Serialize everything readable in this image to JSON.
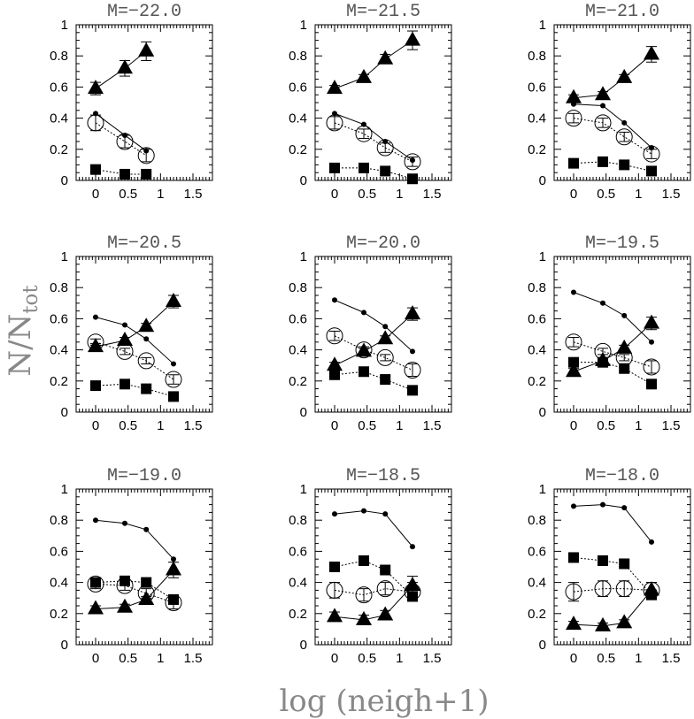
{
  "figure": {
    "ylabel_main": "N/N",
    "ylabel_sub": "tot",
    "xlabel": "log (neigh+1)"
  },
  "chart_data": [
    {
      "type": "scatter",
      "title": "M=−22.0",
      "xlim": [
        -0.3,
        1.8
      ],
      "ylim": [
        0,
        1
      ],
      "xticks": [
        "0",
        "0.5",
        "1",
        "1.5"
      ],
      "yticks": [
        "0",
        "0.2",
        "0.4",
        "0.6",
        "0.8",
        "1"
      ],
      "series": [
        {
          "name": "triangles",
          "marker": "triangle",
          "line": "solid",
          "x": [
            0,
            0.45,
            0.78
          ],
          "y": [
            0.59,
            0.72,
            0.83
          ],
          "err": [
            0.04,
            0.05,
            0.06
          ]
        },
        {
          "name": "open circles",
          "marker": "open-circle",
          "line": "dotted",
          "x": [
            0,
            0.45,
            0.78
          ],
          "y": [
            0.37,
            0.25,
            0.16
          ],
          "err": [
            0.05,
            0.04,
            0.04
          ]
        },
        {
          "name": "dots",
          "marker": "dot",
          "line": "solid",
          "x": [
            0,
            0.45,
            0.78
          ],
          "y": [
            0.43,
            0.29,
            0.19
          ],
          "err": []
        },
        {
          "name": "squares",
          "marker": "square",
          "line": "dotted",
          "x": [
            0,
            0.45,
            0.78
          ],
          "y": [
            0.07,
            0.04,
            0.04
          ],
          "err": []
        }
      ]
    },
    {
      "type": "scatter",
      "title": "M=−21.5",
      "xlim": [
        -0.3,
        1.8
      ],
      "ylim": [
        0,
        1
      ],
      "xticks": [
        "0",
        "0.5",
        "1",
        "1.5"
      ],
      "yticks": [
        "0",
        "0.2",
        "0.4",
        "0.6",
        "0.8",
        "1"
      ],
      "series": [
        {
          "name": "triangles",
          "marker": "triangle",
          "line": "solid",
          "x": [
            0,
            0.45,
            0.78,
            1.2
          ],
          "y": [
            0.59,
            0.66,
            0.78,
            0.9
          ],
          "err": [
            0.02,
            0.02,
            0.03,
            0.06
          ]
        },
        {
          "name": "open circles",
          "marker": "open-circle",
          "line": "dotted",
          "x": [
            0,
            0.45,
            0.78,
            1.2
          ],
          "y": [
            0.37,
            0.3,
            0.21,
            0.12
          ],
          "err": [
            0.04,
            0.03,
            0.03,
            0.03
          ]
        },
        {
          "name": "dots",
          "marker": "dot",
          "line": "solid",
          "x": [
            0,
            0.45,
            0.78,
            1.2
          ],
          "y": [
            0.43,
            0.36,
            0.25,
            0.13
          ],
          "err": []
        },
        {
          "name": "squares",
          "marker": "square",
          "line": "dotted",
          "x": [
            0,
            0.45,
            0.78,
            1.2
          ],
          "y": [
            0.08,
            0.08,
            0.06,
            0.01
          ],
          "err": []
        }
      ]
    },
    {
      "type": "scatter",
      "title": "M=−21.0",
      "xlim": [
        -0.3,
        1.8
      ],
      "ylim": [
        0,
        1
      ],
      "xticks": [
        "0",
        "0.5",
        "1",
        "1.5"
      ],
      "yticks": [
        "0",
        "0.2",
        "0.4",
        "0.6",
        "0.8",
        "1"
      ],
      "series": [
        {
          "name": "triangles",
          "marker": "triangle",
          "line": "solid",
          "x": [
            0,
            0.45,
            0.78,
            1.2
          ],
          "y": [
            0.53,
            0.55,
            0.66,
            0.81
          ],
          "err": [
            0.02,
            0.02,
            0.02,
            0.05
          ]
        },
        {
          "name": "open circles",
          "marker": "open-circle",
          "line": "dotted",
          "x": [
            0,
            0.45,
            0.78,
            1.2
          ],
          "y": [
            0.4,
            0.37,
            0.28,
            0.17
          ],
          "err": [
            0.03,
            0.03,
            0.03,
            0.03
          ]
        },
        {
          "name": "dots",
          "marker": "dot",
          "line": "solid",
          "x": [
            0,
            0.45,
            0.78,
            1.2
          ],
          "y": [
            0.49,
            0.48,
            0.37,
            0.21
          ],
          "err": []
        },
        {
          "name": "squares",
          "marker": "square",
          "line": "dotted",
          "x": [
            0,
            0.45,
            0.78,
            1.2
          ],
          "y": [
            0.11,
            0.12,
            0.1,
            0.06
          ],
          "err": []
        }
      ]
    },
    {
      "type": "scatter",
      "title": "M=−20.5",
      "xlim": [
        -0.3,
        1.8
      ],
      "ylim": [
        0,
        1
      ],
      "xticks": [
        "0",
        "0.5",
        "1",
        "1.5"
      ],
      "yticks": [
        "0",
        "0.2",
        "0.4",
        "0.6",
        "0.8",
        "1"
      ],
      "series": [
        {
          "name": "triangles",
          "marker": "triangle",
          "line": "solid",
          "x": [
            0,
            0.45,
            0.78,
            1.2
          ],
          "y": [
            0.42,
            0.46,
            0.55,
            0.71
          ],
          "err": [
            0.02,
            0.02,
            0.02,
            0.04
          ]
        },
        {
          "name": "open circles",
          "marker": "open-circle",
          "line": "dotted",
          "x": [
            0,
            0.45,
            0.78,
            1.2
          ],
          "y": [
            0.45,
            0.39,
            0.33,
            0.21
          ],
          "err": [
            0.02,
            0.02,
            0.02,
            0.03
          ]
        },
        {
          "name": "dots",
          "marker": "dot",
          "line": "solid",
          "x": [
            0,
            0.45,
            0.78,
            1.2
          ],
          "y": [
            0.61,
            0.56,
            0.47,
            0.31
          ],
          "err": []
        },
        {
          "name": "squares",
          "marker": "square",
          "line": "dotted",
          "x": [
            0,
            0.45,
            0.78,
            1.2
          ],
          "y": [
            0.17,
            0.18,
            0.15,
            0.1
          ],
          "err": []
        }
      ]
    },
    {
      "type": "scatter",
      "title": "M=−20.0",
      "xlim": [
        -0.3,
        1.8
      ],
      "ylim": [
        0,
        1
      ],
      "xticks": [
        "0",
        "0.5",
        "1",
        "1.5"
      ],
      "yticks": [
        "0",
        "0.2",
        "0.4",
        "0.6",
        "0.8",
        "1"
      ],
      "series": [
        {
          "name": "triangles",
          "marker": "triangle",
          "line": "solid",
          "x": [
            0,
            0.45,
            0.78,
            1.2
          ],
          "y": [
            0.3,
            0.39,
            0.47,
            0.63
          ],
          "err": [
            0.02,
            0.02,
            0.02,
            0.04
          ]
        },
        {
          "name": "open circles",
          "marker": "open-circle",
          "line": "dotted",
          "x": [
            0,
            0.45,
            0.78,
            1.2
          ],
          "y": [
            0.49,
            0.4,
            0.35,
            0.27
          ],
          "err": [
            0.03,
            0.02,
            0.02,
            0.04
          ]
        },
        {
          "name": "dots",
          "marker": "dot",
          "line": "solid",
          "x": [
            0,
            0.45,
            0.78,
            1.2
          ],
          "y": [
            0.72,
            0.64,
            0.55,
            0.39
          ],
          "err": []
        },
        {
          "name": "squares",
          "marker": "square",
          "line": "dotted",
          "x": [
            0,
            0.45,
            0.78,
            1.2
          ],
          "y": [
            0.24,
            0.26,
            0.21,
            0.14
          ],
          "err": []
        }
      ]
    },
    {
      "type": "scatter",
      "title": "M=−19.5",
      "xlim": [
        -0.3,
        1.8
      ],
      "ylim": [
        0,
        1
      ],
      "xticks": [
        "0",
        "0.5",
        "1",
        "1.5"
      ],
      "yticks": [
        "0",
        "0.2",
        "0.4",
        "0.6",
        "0.8",
        "1"
      ],
      "series": [
        {
          "name": "triangles",
          "marker": "triangle",
          "line": "solid",
          "x": [
            0,
            0.45,
            0.78,
            1.2
          ],
          "y": [
            0.26,
            0.33,
            0.41,
            0.57
          ],
          "err": [
            0.02,
            0.02,
            0.02,
            0.04
          ]
        },
        {
          "name": "open circles",
          "marker": "open-circle",
          "line": "dotted",
          "x": [
            0,
            0.45,
            0.78,
            1.2
          ],
          "y": [
            0.45,
            0.39,
            0.35,
            0.29
          ],
          "err": [
            0.03,
            0.02,
            0.02,
            0.04
          ]
        },
        {
          "name": "dots",
          "marker": "dot",
          "line": "solid",
          "x": [
            0,
            0.45,
            0.78,
            1.2
          ],
          "y": [
            0.77,
            0.7,
            0.62,
            0.45
          ],
          "err": []
        },
        {
          "name": "squares",
          "marker": "square",
          "line": "dotted",
          "x": [
            0,
            0.45,
            0.78,
            1.2
          ],
          "y": [
            0.32,
            0.32,
            0.28,
            0.18
          ],
          "err": []
        }
      ]
    },
    {
      "type": "scatter",
      "title": "M=−19.0",
      "xlim": [
        -0.3,
        1.8
      ],
      "ylim": [
        0,
        1
      ],
      "xticks": [
        "0",
        "0.5",
        "1",
        "1.5"
      ],
      "yticks": [
        "0",
        "0.2",
        "0.4",
        "0.6",
        "0.8",
        "1"
      ],
      "series": [
        {
          "name": "triangles",
          "marker": "triangle",
          "line": "solid",
          "x": [
            0,
            0.45,
            0.78,
            1.2
          ],
          "y": [
            0.23,
            0.24,
            0.29,
            0.48
          ],
          "err": [
            0.02,
            0.02,
            0.02,
            0.05
          ]
        },
        {
          "name": "open circles",
          "marker": "open-circle",
          "line": "dotted",
          "x": [
            0,
            0.45,
            0.78,
            1.2
          ],
          "y": [
            0.39,
            0.38,
            0.33,
            0.27
          ],
          "err": [
            0.03,
            0.03,
            0.03,
            0.04
          ]
        },
        {
          "name": "dots",
          "marker": "dot",
          "line": "solid",
          "x": [
            0,
            0.45,
            0.78,
            1.2
          ],
          "y": [
            0.8,
            0.78,
            0.74,
            0.55
          ],
          "err": []
        },
        {
          "name": "squares",
          "marker": "square",
          "line": "dotted",
          "x": [
            0,
            0.45,
            0.78,
            1.2
          ],
          "y": [
            0.4,
            0.41,
            0.4,
            0.29
          ],
          "err": []
        }
      ]
    },
    {
      "type": "scatter",
      "title": "M=−18.5",
      "xlim": [
        -0.3,
        1.8
      ],
      "ylim": [
        0,
        1
      ],
      "xticks": [
        "0",
        "0.5",
        "1",
        "1.5"
      ],
      "yticks": [
        "0",
        "0.2",
        "0.4",
        "0.6",
        "0.8",
        "1"
      ],
      "series": [
        {
          "name": "triangles",
          "marker": "triangle",
          "line": "solid",
          "x": [
            0,
            0.45,
            0.78,
            1.2
          ],
          "y": [
            0.18,
            0.16,
            0.19,
            0.38
          ],
          "err": [
            0.03,
            0.03,
            0.03,
            0.06
          ]
        },
        {
          "name": "open circles",
          "marker": "open-circle",
          "line": "dotted",
          "x": [
            0,
            0.45,
            0.78,
            1.2
          ],
          "y": [
            0.35,
            0.32,
            0.36,
            0.34
          ],
          "err": [
            0.05,
            0.04,
            0.04,
            0.06
          ]
        },
        {
          "name": "dots",
          "marker": "dot",
          "line": "solid",
          "x": [
            0,
            0.45,
            0.78,
            1.2
          ],
          "y": [
            0.84,
            0.86,
            0.84,
            0.63
          ],
          "err": []
        },
        {
          "name": "squares",
          "marker": "square",
          "line": "dotted",
          "x": [
            0,
            0.45,
            0.78,
            1.2
          ],
          "y": [
            0.5,
            0.54,
            0.48,
            0.31
          ],
          "err": []
        }
      ]
    },
    {
      "type": "scatter",
      "title": "M=−18.0",
      "xlim": [
        -0.3,
        1.8
      ],
      "ylim": [
        0,
        1
      ],
      "xticks": [
        "0",
        "0.5",
        "1",
        "1.5"
      ],
      "yticks": [
        "0",
        "0.2",
        "0.4",
        "0.6",
        "0.8",
        "1"
      ],
      "series": [
        {
          "name": "triangles",
          "marker": "triangle",
          "line": "solid",
          "x": [
            0,
            0.45,
            0.78,
            1.2
          ],
          "y": [
            0.13,
            0.12,
            0.14,
            0.35
          ],
          "err": [
            0.02,
            0.02,
            0.02,
            0.05
          ]
        },
        {
          "name": "open circles",
          "marker": "open-circle",
          "line": "dotted",
          "x": [
            0,
            0.45,
            0.78,
            1.2
          ],
          "y": [
            0.34,
            0.36,
            0.36,
            0.35
          ],
          "err": [
            0.06,
            0.05,
            0.05,
            0.05
          ]
        },
        {
          "name": "dots",
          "marker": "dot",
          "line": "solid",
          "x": [
            0,
            0.45,
            0.78,
            1.2
          ],
          "y": [
            0.89,
            0.9,
            0.88,
            0.66
          ],
          "err": []
        },
        {
          "name": "squares",
          "marker": "square",
          "line": "dotted",
          "x": [
            0,
            0.45,
            0.78,
            1.2
          ],
          "y": [
            0.56,
            0.54,
            0.52,
            0.32
          ],
          "err": []
        }
      ]
    }
  ]
}
